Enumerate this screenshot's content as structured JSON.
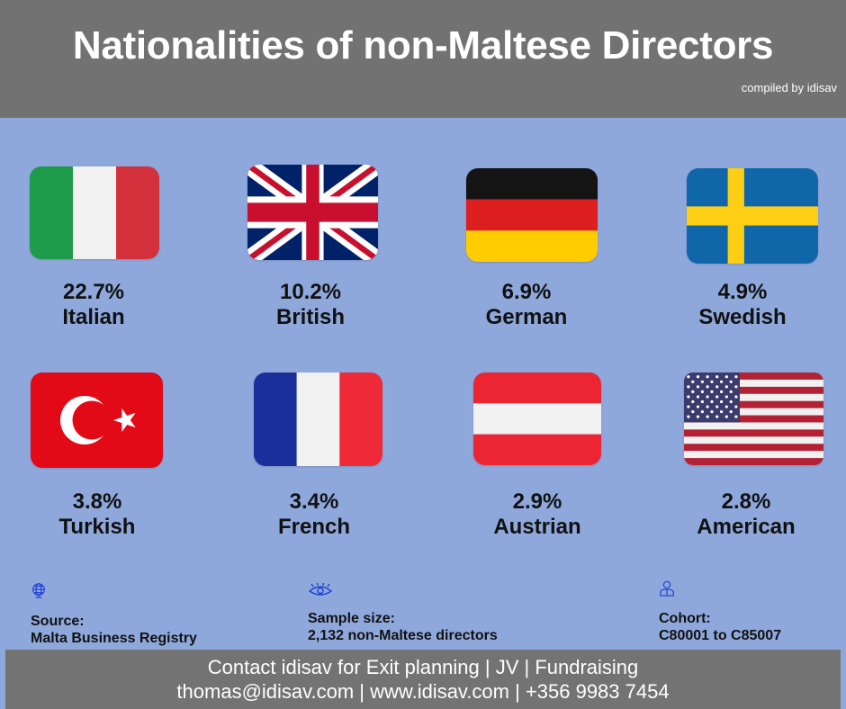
{
  "header": {
    "title": "Nationalities of non-Maltese Directors",
    "subtitle": "compiled by idisav"
  },
  "nationalities": [
    {
      "percent": "22.7%",
      "name": "Italian",
      "flag_icon": "italy-flag-icon"
    },
    {
      "percent": "10.2%",
      "name": "British",
      "flag_icon": "uk-flag-icon"
    },
    {
      "percent": "6.9%",
      "name": "German",
      "flag_icon": "germany-flag-icon"
    },
    {
      "percent": "4.9%",
      "name": "Swedish",
      "flag_icon": "sweden-flag-icon"
    },
    {
      "percent": "3.8%",
      "name": "Turkish",
      "flag_icon": "turkey-flag-icon"
    },
    {
      "percent": "3.4%",
      "name": "French",
      "flag_icon": "france-flag-icon"
    },
    {
      "percent": "2.9%",
      "name": "Austrian",
      "flag_icon": "austria-flag-icon"
    },
    {
      "percent": "2.8%",
      "name": "American",
      "flag_icon": "usa-flag-icon"
    }
  ],
  "info": {
    "source_label": "Source:",
    "source_value": "Malta Business Registry",
    "sample_label": "Sample size:",
    "sample_value": "2,132 non-Maltese directors",
    "cohort_label": "Cohort:",
    "cohort_value": "C80001 to C85007"
  },
  "footer": {
    "line1": "Contact idisav for Exit planning | JV | Fundraising",
    "line2": "thomas@idisav.com | www.idisav.com | +356 9983 7454"
  },
  "colors": {
    "background": "#8fa8dc",
    "header": "#727272",
    "footer": "#737373",
    "icon_accent": "#1f3fd6"
  }
}
